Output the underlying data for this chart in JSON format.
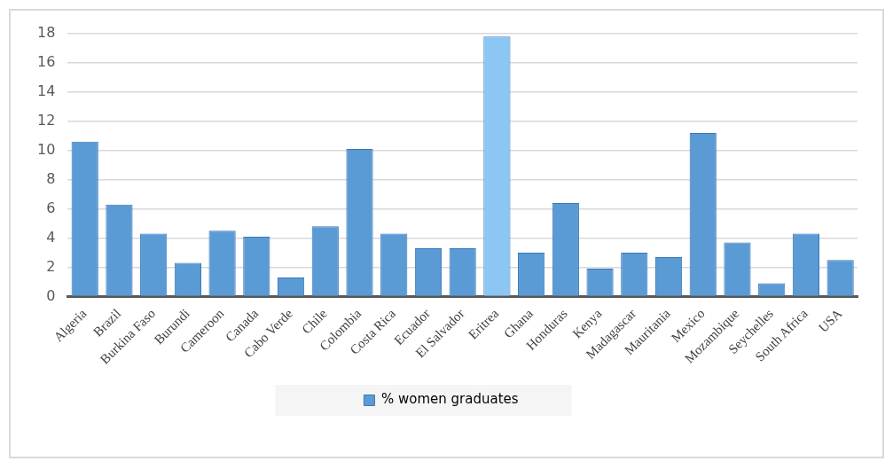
{
  "chart_data": {
    "type": "bar",
    "categories": [
      "Algeria",
      "Brazil",
      "Burkina Faso",
      "Burundi",
      "Cameroon",
      "Canada",
      "Cabo Verde",
      "Chile",
      "Colombia",
      "Costa Rica",
      "Ecuador",
      "El Salvador",
      "Eritrea",
      "Ghana",
      "Honduras",
      "Kenya",
      "Madagascar",
      "Mauritania",
      "Mexico",
      "Mozambique",
      "Seychelles",
      "South Africa",
      "USA"
    ],
    "series": [
      {
        "name": "% women graduates",
        "color": "#5b9bd5",
        "colors": [
          "#5b9bd5",
          "#5b9bd5",
          "#5b9bd5",
          "#5b9bd5",
          "#5b9bd5",
          "#5b9bd5",
          "#5b9bd5",
          "#5b9bd5",
          "#5b9bd5",
          "#5b9bd5",
          "#5b9bd5",
          "#5b9bd5",
          "#8cc6f2",
          "#5b9bd5",
          "#5b9bd5",
          "#5b9bd5",
          "#5b9bd5",
          "#5b9bd5",
          "#5b9bd5",
          "#5b9bd5",
          "#5b9bd5",
          "#5b9bd5",
          "#5b9bd5"
        ],
        "values": [
          10.6,
          6.3,
          4.3,
          2.3,
          4.5,
          4.1,
          1.3,
          4.8,
          10.1,
          4.3,
          3.3,
          3.3,
          17.8,
          3.0,
          6.4,
          1.9,
          3.0,
          2.7,
          11.2,
          3.7,
          0.9,
          4.3,
          2.5
        ]
      }
    ],
    "ylim": [
      0,
      18
    ],
    "yticks": [
      0,
      2,
      4,
      6,
      8,
      10,
      12,
      14,
      16,
      18
    ],
    "grid": "y",
    "legend": "bottom"
  }
}
